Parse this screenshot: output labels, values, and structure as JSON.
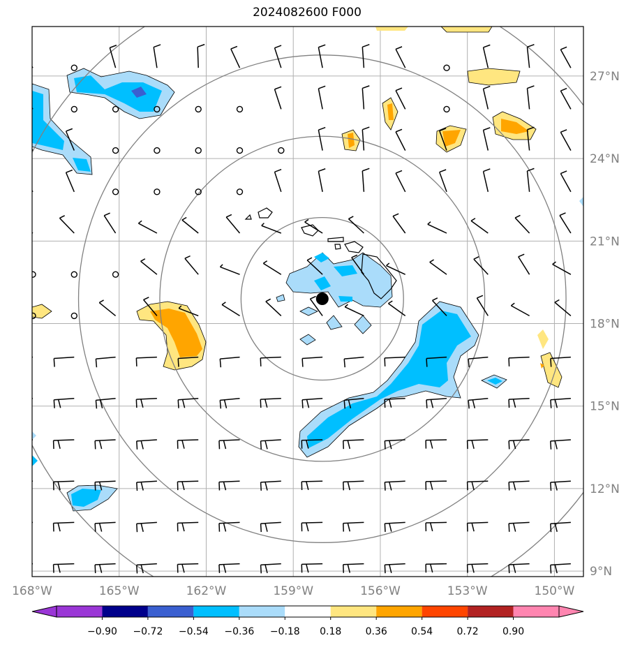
{
  "title": "2024082600 F000",
  "map": {
    "lon_range": [
      -168,
      -149
    ],
    "lat_range": [
      8.8,
      28.8
    ],
    "lon_ticks": [
      "168°W",
      "165°W",
      "162°W",
      "159°W",
      "156°W",
      "153°W",
      "150°W"
    ],
    "lon_tick_values": [
      -168,
      -165,
      -162,
      -159,
      -156,
      -153,
      -150
    ],
    "lat_ticks": [
      "9°N",
      "12°N",
      "15°N",
      "18°N",
      "21°N",
      "24°N",
      "27°N"
    ],
    "lat_tick_values": [
      9,
      12,
      15,
      18,
      21,
      24,
      27
    ],
    "grid": true,
    "center_marker": {
      "lon": -158.0,
      "lat": 18.9
    },
    "range_rings_deg": [
      2.8,
      5.6,
      8.4,
      11.2
    ]
  },
  "colorbar": {
    "labels": [
      "−0.90",
      "−0.72",
      "−0.54",
      "−0.36",
      "−0.18",
      "0.18",
      "0.36",
      "0.54",
      "0.72",
      "0.90"
    ],
    "colors": [
      "#9a36d6",
      "#00008b",
      "#3a5fd0",
      "#00bfff",
      "#aadcfa",
      "#ffffff",
      "#ffe680",
      "#ffa500",
      "#ff4500",
      "#b22222",
      "#ff85b0"
    ],
    "extend": "both"
  }
}
